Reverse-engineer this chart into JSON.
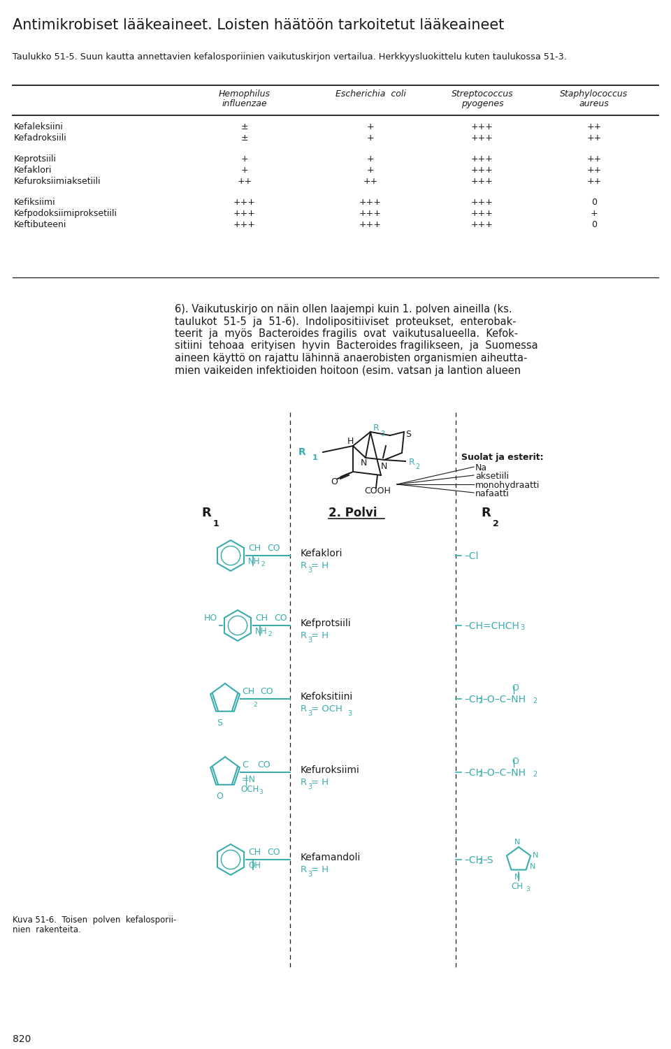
{
  "title": "Antimikrobiset lääkeaineet. Loisten häätöön tarkoitetut lääkeaineet",
  "subtitle": "Taulukko 51-5. Suun kautta annettavien kefalosporiinien vaikutuskirjon vertailua. Herkkyysluokittelu kuten taulukossa 51-3.",
  "col_headers": [
    [
      "Hemophilus",
      "influenzae"
    ],
    [
      "Escherichia  coli",
      ""
    ],
    [
      "Streptococcus",
      "pyogenes"
    ],
    [
      "Staphylococcus",
      "aureus"
    ]
  ],
  "row_groups": [
    [
      [
        "Kefaleksiini",
        "±",
        "+",
        "+++",
        "++"
      ],
      [
        "Kefadroksiili",
        "±",
        "+",
        "+++",
        "++"
      ]
    ],
    [
      [
        "Keprotsiili",
        "+",
        "+",
        "+++",
        "++"
      ],
      [
        "Kefaklori",
        "+",
        "+",
        "+++",
        "++"
      ],
      [
        "Kefuroksiimiaksetiili",
        "++",
        "++",
        "+++",
        "++"
      ]
    ],
    [
      [
        "Kefiksiimi",
        "+++",
        "+++",
        "+++",
        "0"
      ],
      [
        "Kefpodoksiimiproksetiili",
        "+++",
        "+++",
        "+++",
        "+"
      ],
      [
        "Keftibuteeni",
        "+++",
        "+++",
        "+++",
        "0"
      ]
    ]
  ],
  "body_lines": [
    "6). Vaikutuskirjo on näin ollen laajempi kuin 1. polven aineilla (ks.",
    "taulukot  51-5  ja  51-6).  Indolipositiiviset  proteukset,  enterobak-",
    "teerit  ja  myös  Bacteroides fragilis  ovat  vaikutusalueella.  Kefok-",
    "sitiini  tehoaa  erityisen  hyvin  Bacteroides fragilikseen,  ja  Suomessa",
    "aineen käyttö on rajattu lähinnä anaerobisten organismien aiheutta-",
    "mien vaikeiden infektioiden hoitoon (esim. vatsan ja lantion alueen"
  ],
  "caption": [
    "Kuva 51-6.  Toisen  polven  kefalosporii-",
    "nien  rakenteita."
  ],
  "page_num": "820",
  "cyan": "#3AACAC",
  "black": "#1a1a1a",
  "bg": "#ffffff"
}
